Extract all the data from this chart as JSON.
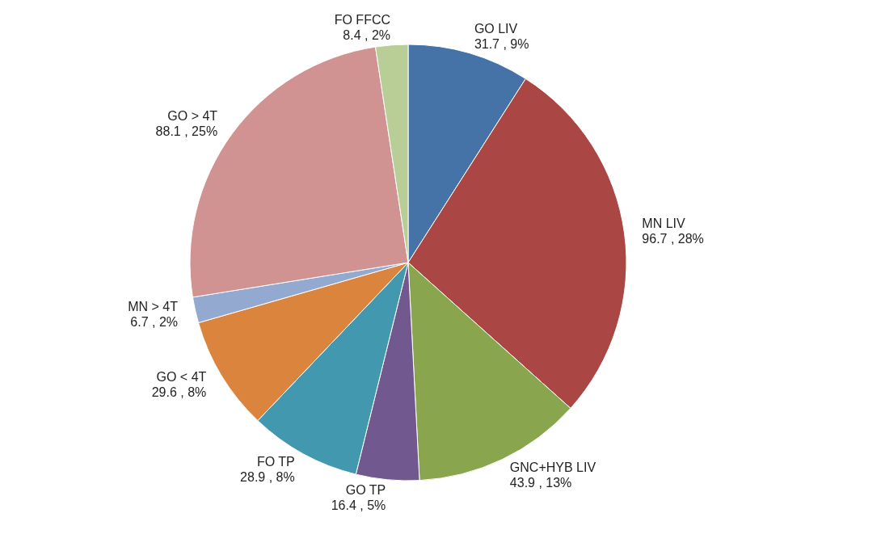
{
  "chart_data": {
    "type": "pie",
    "categories": [
      "GO LIV",
      "MN LIV",
      "GNC+HYB LIV",
      "GO TP",
      "FO TP",
      "GO < 4T",
      "MN > 4T",
      "GO > 4T",
      "FO FFCC"
    ],
    "values": [
      31.7,
      96.7,
      43.9,
      16.4,
      28.9,
      29.6,
      6.7,
      88.1,
      8.4
    ],
    "colors": [
      "#4572a7",
      "#aa4643",
      "#89a54e",
      "#71588f",
      "#4198af",
      "#db843d",
      "#93a9cf",
      "#d09392",
      "#b9cd96"
    ],
    "value_labels": [
      "31.7 , 9%",
      "96.7 , 28%",
      "43.9 , 13%",
      "16.4 , 5%",
      "28.9 , 8%",
      "29.6 , 8%",
      "6.7 , 2%",
      "88.1 , 25%",
      "8.4 , 2%"
    ],
    "legend": false
  }
}
